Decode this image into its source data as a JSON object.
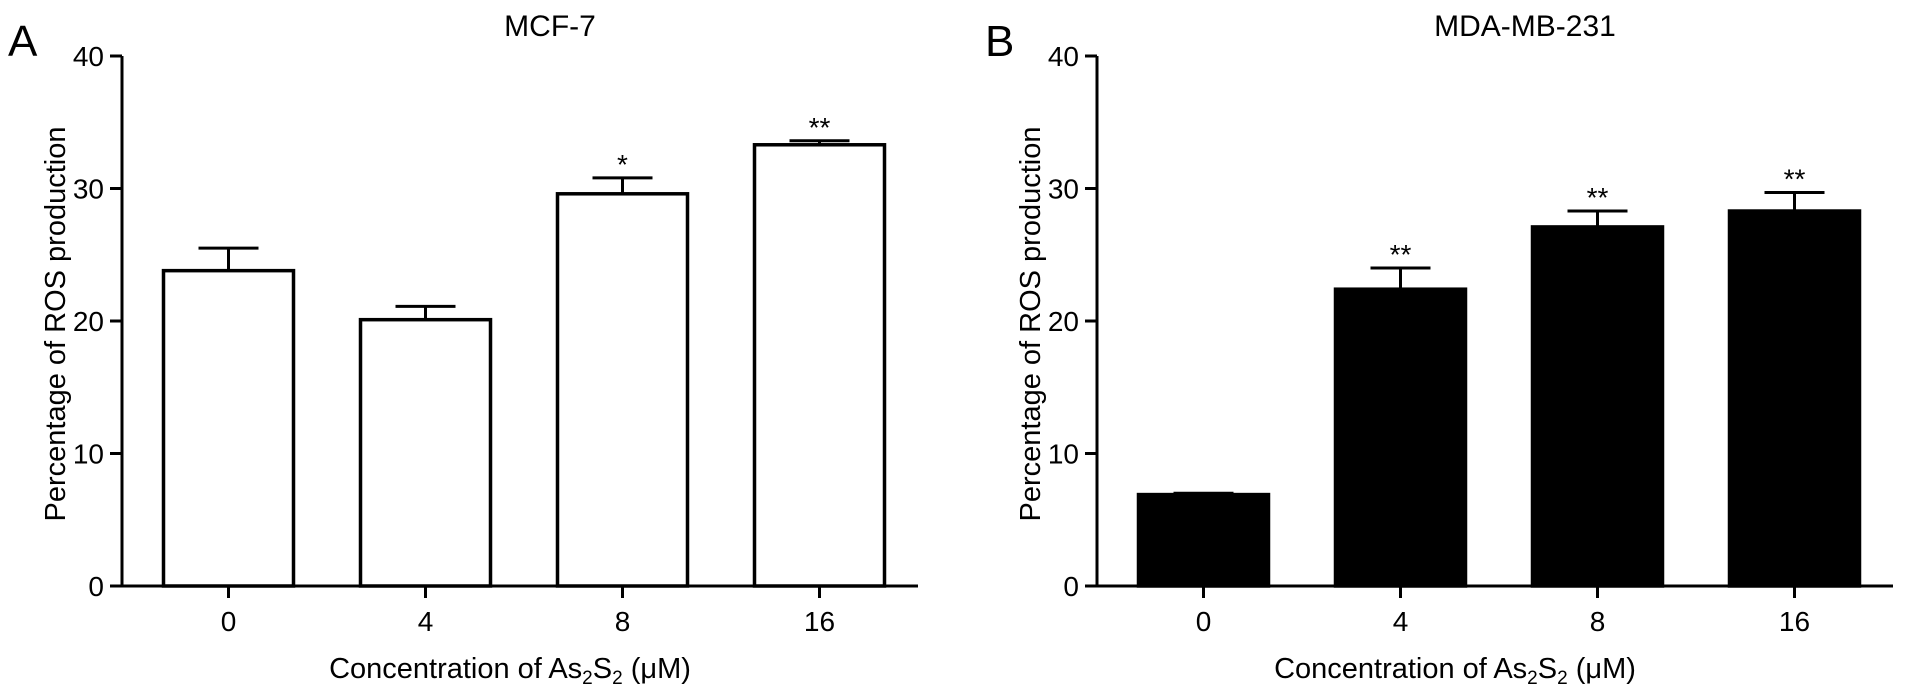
{
  "chart_data": [
    {
      "type": "bar",
      "panel_label": "A",
      "title": "MCF-7",
      "categories": [
        "0",
        "4",
        "8",
        "16"
      ],
      "values": [
        23.8,
        20.1,
        29.6,
        33.3
      ],
      "error": [
        1.7,
        1.0,
        1.2,
        0.3
      ],
      "significance": [
        "",
        "",
        "*",
        "**"
      ],
      "xlabel_parts": {
        "pre": "Concentration of As",
        "sub1": "2",
        "mid": "S",
        "sub2": "2",
        "post": " (μM)"
      },
      "ylabel": "Percentage of ROS production",
      "ylim": [
        0,
        40
      ],
      "yticks": [
        "0",
        "10",
        "20",
        "30",
        "40"
      ],
      "bar_fill": "#ffffff",
      "bar_stroke": "#000000",
      "grid": false
    },
    {
      "type": "bar",
      "panel_label": "B",
      "title": "MDA-MB-231",
      "categories": [
        "0",
        "4",
        "8",
        "16"
      ],
      "values": [
        6.9,
        22.4,
        27.1,
        28.3
      ],
      "error": [
        0.1,
        1.6,
        1.2,
        1.4
      ],
      "significance": [
        "",
        "**",
        "**",
        "**"
      ],
      "xlabel_parts": {
        "pre": "Concentration of As",
        "sub1": "2",
        "mid": "S",
        "sub2": "2",
        "post": " (μM)"
      },
      "ylabel": "Percentage of ROS production",
      "ylim": [
        0,
        40
      ],
      "yticks": [
        "0",
        "10",
        "20",
        "30",
        "40"
      ],
      "bar_fill": "#000000",
      "bar_stroke": "#000000",
      "grid": false
    }
  ]
}
